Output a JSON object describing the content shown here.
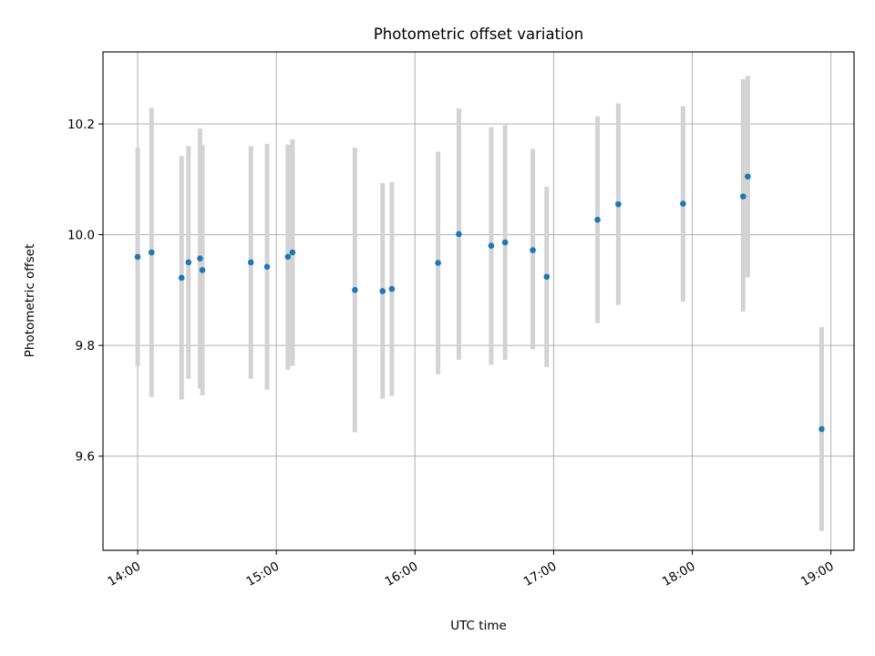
{
  "chart_data": {
    "type": "scatter",
    "title": "Photometric offset variation",
    "xlabel": "UTC time",
    "ylabel": "Photometric offset",
    "x_axis": {
      "type": "time",
      "range": [
        "13:45",
        "19:10"
      ],
      "ticks": [
        "14:00",
        "15:00",
        "16:00",
        "17:00",
        "18:00",
        "19:00"
      ],
      "tick_rotation_deg": 30
    },
    "y_axis": {
      "range": [
        9.43,
        10.33
      ],
      "ticks": [
        9.6,
        9.8,
        10.0,
        10.2
      ],
      "tick_labels": [
        "9.6",
        "9.8",
        "10.0",
        "10.2"
      ]
    },
    "grid": true,
    "colors": {
      "point": "#1f77b4",
      "errorbar": "#d3d3d3"
    },
    "series": [
      {
        "points": [
          {
            "x": "14:00",
            "y": 9.96,
            "yerr": [
              9.762,
              10.157
            ]
          },
          {
            "x": "14:06",
            "y": 9.968,
            "yerr": [
              9.707,
              10.229
            ]
          },
          {
            "x": "14:19",
            "y": 9.922,
            "yerr": [
              9.702,
              10.142
            ]
          },
          {
            "x": "14:22",
            "y": 9.95,
            "yerr": [
              9.74,
              10.16
            ]
          },
          {
            "x": "14:27",
            "y": 9.957,
            "yerr": [
              9.722,
              10.192
            ]
          },
          {
            "x": "14:28",
            "y": 9.936,
            "yerr": [
              9.71,
              10.162
            ]
          },
          {
            "x": "14:49",
            "y": 9.95,
            "yerr": [
              9.74,
              10.16
            ]
          },
          {
            "x": "14:56",
            "y": 9.942,
            "yerr": [
              9.72,
              10.164
            ]
          },
          {
            "x": "15:05",
            "y": 9.96,
            "yerr": [
              9.756,
              10.163
            ]
          },
          {
            "x": "15:07",
            "y": 9.968,
            "yerr": [
              9.763,
              10.172
            ]
          },
          {
            "x": "15:34",
            "y": 9.9,
            "yerr": [
              9.643,
              10.157
            ]
          },
          {
            "x": "15:46",
            "y": 9.898,
            "yerr": [
              9.704,
              10.093
            ]
          },
          {
            "x": "15:50",
            "y": 9.902,
            "yerr": [
              9.709,
              10.095
            ]
          },
          {
            "x": "16:10",
            "y": 9.949,
            "yerr": [
              9.748,
              10.15
            ]
          },
          {
            "x": "16:19",
            "y": 10.001,
            "yerr": [
              9.774,
              10.228
            ]
          },
          {
            "x": "16:33",
            "y": 9.98,
            "yerr": [
              9.765,
              10.194
            ]
          },
          {
            "x": "16:39",
            "y": 9.986,
            "yerr": [
              9.774,
              10.198
            ]
          },
          {
            "x": "16:51",
            "y": 9.972,
            "yerr": [
              9.793,
              10.155
            ]
          },
          {
            "x": "16:57",
            "y": 9.924,
            "yerr": [
              9.761,
              10.087
            ]
          },
          {
            "x": "17:19",
            "y": 10.027,
            "yerr": [
              9.84,
              10.214
            ]
          },
          {
            "x": "17:28",
            "y": 10.055,
            "yerr": [
              9.873,
              10.237
            ]
          },
          {
            "x": "17:56",
            "y": 10.056,
            "yerr": [
              9.879,
              10.232
            ]
          },
          {
            "x": "18:22",
            "y": 10.069,
            "yerr": [
              9.861,
              10.281
            ]
          },
          {
            "x": "18:24",
            "y": 10.105,
            "yerr": [
              9.923,
              10.287
            ]
          },
          {
            "x": "18:56",
            "y": 9.649,
            "yerr": [
              9.465,
              9.833
            ]
          }
        ]
      }
    ]
  }
}
